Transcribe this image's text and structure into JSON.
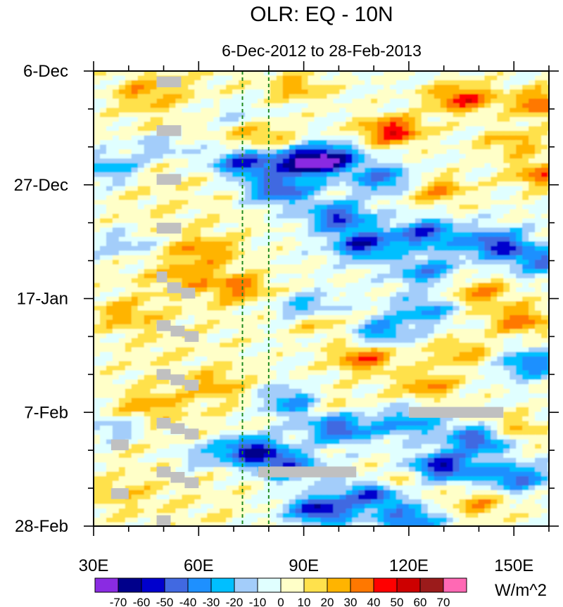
{
  "chart_data": {
    "type": "heatmap",
    "title": "OLR: EQ - 10N",
    "subtitle": "6-Dec-2012 to 28-Feb-2013",
    "xlabel": "",
    "ylabel": "",
    "x_range": [
      30,
      160
    ],
    "x_units": "degrees East longitude",
    "x_ticks": [
      {
        "value": 30,
        "label": "30E"
      },
      {
        "value": 60,
        "label": "60E"
      },
      {
        "value": 90,
        "label": "90E"
      },
      {
        "value": 120,
        "label": "120E"
      },
      {
        "value": 150,
        "label": "150E"
      }
    ],
    "y_range_days": [
      0,
      84
    ],
    "y_direction": "time increases downward",
    "y_ticks": [
      {
        "day": 0,
        "label": "6-Dec"
      },
      {
        "day": 21,
        "label": "27-Dec"
      },
      {
        "day": 42,
        "label": "17-Jan"
      },
      {
        "day": 63,
        "label": "7-Feb"
      },
      {
        "day": 84,
        "label": "28-Feb"
      }
    ],
    "reference_lines": [
      {
        "lon": 72.5,
        "style": "dashed",
        "color": "#1f8a1f"
      },
      {
        "lon": 80,
        "style": "dashed",
        "color": "#1f8a1f"
      }
    ],
    "colorbar": {
      "units": "W/m^2",
      "levels": [
        -70,
        -60,
        -50,
        -40,
        -30,
        -20,
        -10,
        0,
        10,
        20,
        30,
        40,
        50,
        60,
        70
      ],
      "colors": [
        "#8a2be2",
        "#00008b",
        "#0000cd",
        "#4169e1",
        "#1e90ff",
        "#00bfff",
        "#a3cdfa",
        "#e0ffff",
        "#ffffc8",
        "#ffe14c",
        "#ffb400",
        "#ff7800",
        "#ff0000",
        "#cd0000",
        "#9b1b1b",
        "#ff69b4"
      ]
    },
    "missing_color": "#c0c0c0",
    "anomaly_features": [
      {
        "lon": 135,
        "day": 5,
        "value": 45,
        "desc": "positive"
      },
      {
        "lon": 115,
        "day": 11,
        "value": 50,
        "desc": "positive"
      },
      {
        "lon": 158,
        "day": 6,
        "value": 40,
        "desc": "positive"
      },
      {
        "lon": 158,
        "day": 19,
        "value": 35,
        "desc": "positive"
      },
      {
        "lon": 88,
        "day": 3,
        "value": 25,
        "desc": "positive"
      },
      {
        "lon": 45,
        "day": 4,
        "value": 20,
        "desc": "positive"
      },
      {
        "lon": 150,
        "day": 13,
        "value": 25,
        "desc": "positive"
      },
      {
        "lon": 128,
        "day": 22,
        "value": 30,
        "desc": "positive"
      },
      {
        "lon": 78,
        "day": 12,
        "value": 25,
        "desc": "positive"
      },
      {
        "lon": 62,
        "day": 33,
        "value": 25,
        "desc": "positive"
      },
      {
        "lon": 72,
        "day": 40,
        "value": 30,
        "desc": "positive"
      },
      {
        "lon": 57,
        "day": 38,
        "value": 20,
        "desc": "positive"
      },
      {
        "lon": 38,
        "day": 45,
        "value": 20,
        "desc": "positive"
      },
      {
        "lon": 107,
        "day": 53,
        "value": 40,
        "desc": "positive"
      },
      {
        "lon": 95,
        "day": 46,
        "value": 30,
        "desc": "positive"
      },
      {
        "lon": 140,
        "day": 41,
        "value": 30,
        "desc": "positive"
      },
      {
        "lon": 152,
        "day": 46,
        "value": 35,
        "desc": "positive"
      },
      {
        "lon": 125,
        "day": 58,
        "value": 30,
        "desc": "positive"
      },
      {
        "lon": 95,
        "day": 61,
        "value": 25,
        "desc": "positive"
      },
      {
        "lon": 135,
        "day": 52,
        "value": 25,
        "desc": "positive"
      },
      {
        "lon": 150,
        "day": 66,
        "value": 25,
        "desc": "positive"
      },
      {
        "lon": 115,
        "day": 76,
        "value": 25,
        "desc": "positive"
      },
      {
        "lon": 45,
        "day": 62,
        "value": 20,
        "desc": "positive"
      },
      {
        "lon": 35,
        "day": 78,
        "value": 15,
        "desc": "positive"
      },
      {
        "lon": 140,
        "day": 80,
        "value": 25,
        "desc": "positive"
      },
      {
        "lon": 65,
        "day": 58,
        "value": 20,
        "desc": "positive"
      },
      {
        "lon": 73,
        "day": 17,
        "value": -55,
        "desc": "negative"
      },
      {
        "lon": 90,
        "day": 17,
        "value": -60,
        "desc": "negative"
      },
      {
        "lon": 98,
        "day": 16,
        "value": -50,
        "desc": "negative"
      },
      {
        "lon": 83,
        "day": 22,
        "value": -50,
        "desc": "negative"
      },
      {
        "lon": 113,
        "day": 20,
        "value": -40,
        "desc": "negative"
      },
      {
        "lon": 100,
        "day": 27,
        "value": -50,
        "desc": "negative"
      },
      {
        "lon": 107,
        "day": 32,
        "value": -55,
        "desc": "negative"
      },
      {
        "lon": 125,
        "day": 30,
        "value": -50,
        "desc": "negative"
      },
      {
        "lon": 145,
        "day": 32,
        "value": -55,
        "desc": "negative"
      },
      {
        "lon": 125,
        "day": 37,
        "value": -35,
        "desc": "negative"
      },
      {
        "lon": 158,
        "day": 35,
        "value": -40,
        "desc": "negative"
      },
      {
        "lon": 35,
        "day": 18,
        "value": -30,
        "desc": "negative"
      },
      {
        "lon": 49,
        "day": 14,
        "value": -25,
        "desc": "negative"
      },
      {
        "lon": 40,
        "day": 32,
        "value": -20,
        "desc": "negative"
      },
      {
        "lon": 92,
        "day": 44,
        "value": -35,
        "desc": "negative"
      },
      {
        "lon": 112,
        "day": 48,
        "value": -35,
        "desc": "negative"
      },
      {
        "lon": 125,
        "day": 44,
        "value": -30,
        "desc": "negative"
      },
      {
        "lon": 155,
        "day": 54,
        "value": -40,
        "desc": "negative"
      },
      {
        "lon": 88,
        "day": 61,
        "value": -45,
        "desc": "negative"
      },
      {
        "lon": 100,
        "day": 66,
        "value": -50,
        "desc": "negative"
      },
      {
        "lon": 120,
        "day": 65,
        "value": -35,
        "desc": "negative"
      },
      {
        "lon": 140,
        "day": 68,
        "value": -50,
        "desc": "negative"
      },
      {
        "lon": 75,
        "day": 70,
        "value": -60,
        "desc": "negative"
      },
      {
        "lon": 85,
        "day": 73,
        "value": -45,
        "desc": "negative"
      },
      {
        "lon": 110,
        "day": 78,
        "value": -55,
        "desc": "negative"
      },
      {
        "lon": 130,
        "day": 73,
        "value": -60,
        "desc": "negative"
      },
      {
        "lon": 150,
        "day": 75,
        "value": -45,
        "desc": "negative"
      },
      {
        "lon": 95,
        "day": 81,
        "value": -60,
        "desc": "negative"
      },
      {
        "lon": 120,
        "day": 83,
        "value": -45,
        "desc": "negative"
      },
      {
        "lon": 60,
        "day": 71,
        "value": -20,
        "desc": "negative"
      },
      {
        "lon": 38,
        "day": 66,
        "value": -20,
        "desc": "negative"
      },
      {
        "lon": 70,
        "day": 8,
        "value": -15,
        "desc": "negative"
      }
    ],
    "missing_blocks": [
      {
        "lon0": 48,
        "lon1": 55,
        "day0": 1,
        "day1": 3
      },
      {
        "lon0": 48,
        "lon1": 55,
        "day0": 10,
        "day1": 12
      },
      {
        "lon0": 48,
        "lon1": 55,
        "day0": 19,
        "day1": 21
      },
      {
        "lon0": 48,
        "lon1": 55,
        "day0": 28,
        "day1": 30
      },
      {
        "lon0": 48,
        "lon1": 51,
        "day0": 37,
        "day1": 39
      },
      {
        "lon0": 51,
        "lon1": 55,
        "day0": 39,
        "day1": 41
      },
      {
        "lon0": 55,
        "lon1": 59,
        "day0": 40,
        "day1": 42
      },
      {
        "lon0": 48,
        "lon1": 52,
        "day0": 46,
        "day1": 48
      },
      {
        "lon0": 52,
        "lon1": 56,
        "day0": 47,
        "day1": 49
      },
      {
        "lon0": 56,
        "lon1": 60,
        "day0": 48,
        "day1": 50
      },
      {
        "lon0": 48,
        "lon1": 52,
        "day0": 55,
        "day1": 57
      },
      {
        "lon0": 52,
        "lon1": 56,
        "day0": 56,
        "day1": 58
      },
      {
        "lon0": 56,
        "lon1": 60,
        "day0": 57,
        "day1": 59
      },
      {
        "lon0": 48,
        "lon1": 52,
        "day0": 64,
        "day1": 66
      },
      {
        "lon0": 52,
        "lon1": 56,
        "day0": 65,
        "day1": 67
      },
      {
        "lon0": 56,
        "lon1": 60,
        "day0": 66,
        "day1": 68
      },
      {
        "lon0": 35,
        "lon1": 40,
        "day0": 68,
        "day1": 70
      },
      {
        "lon0": 48,
        "lon1": 52,
        "day0": 73,
        "day1": 75
      },
      {
        "lon0": 52,
        "lon1": 56,
        "day0": 74,
        "day1": 76
      },
      {
        "lon0": 56,
        "lon1": 60,
        "day0": 75,
        "day1": 77
      },
      {
        "lon0": 35,
        "lon1": 40,
        "day0": 77,
        "day1": 79
      },
      {
        "lon0": 48,
        "lon1": 52,
        "day0": 82,
        "day1": 84
      },
      {
        "lon0": 120,
        "lon1": 147,
        "day0": 62,
        "day1": 64
      },
      {
        "lon0": 77,
        "lon1": 105,
        "day0": 73,
        "day1": 75
      }
    ]
  }
}
